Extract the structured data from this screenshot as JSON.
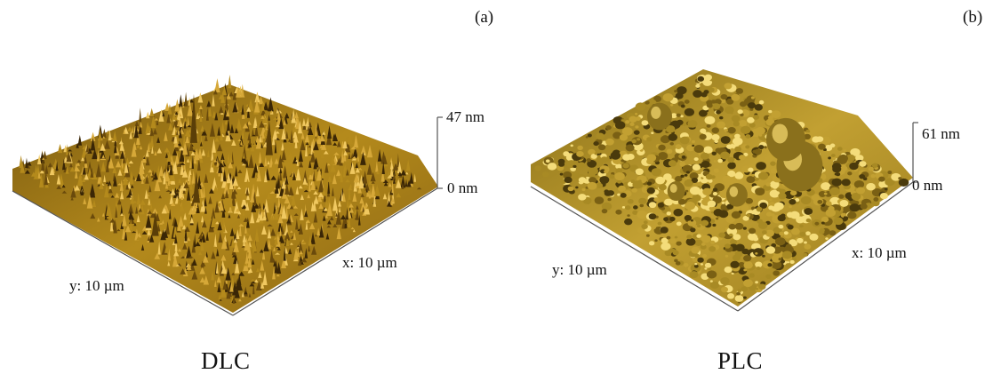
{
  "panels": [
    {
      "tag": "(a)",
      "caption": "DLC",
      "z_max_label": "47 nm",
      "z_min_label": "0 nm",
      "x_label": "x: 10 µm",
      "y_label": "y: 10 µm",
      "z_max_nm": 47,
      "x_range_um": 10,
      "y_range_um": 10,
      "surface_color": "#b48a1c",
      "shadow_color": "#3a2606",
      "highlight_color": "#f0c860"
    },
    {
      "tag": "(b)",
      "caption": "PLC",
      "z_max_label": "61 nm",
      "z_min_label": "0 nm",
      "x_label": "x: 10 µm",
      "y_label": "y: 10 µm",
      "z_max_nm": 61,
      "x_range_um": 10,
      "y_range_um": 10,
      "surface_color": "#c2a032",
      "shadow_color": "#4a3a0c",
      "highlight_color": "#f4dc7a"
    }
  ]
}
